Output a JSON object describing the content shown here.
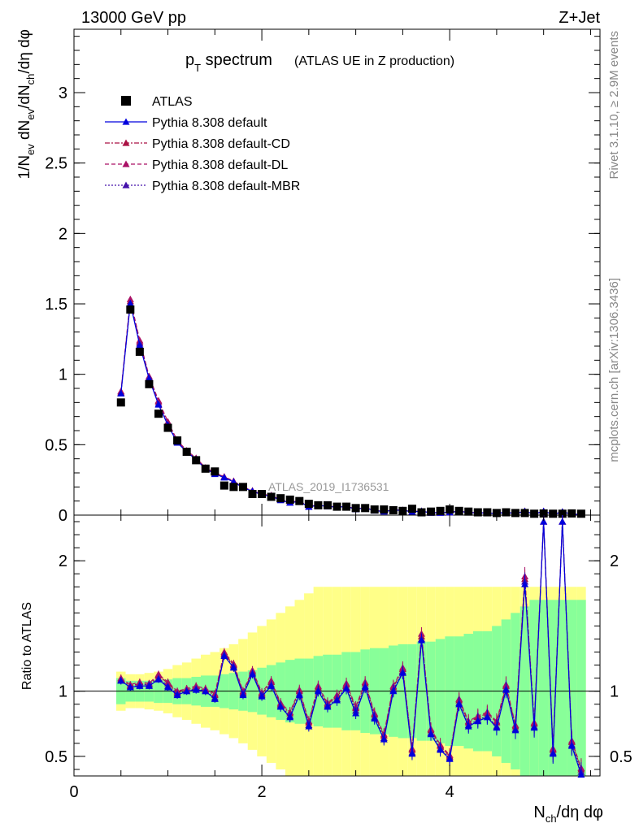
{
  "header": {
    "left": "13000 GeV pp",
    "right": "Z+Jet"
  },
  "title": {
    "main": "p",
    "main_sub": "T",
    "main_rest": " spectrum",
    "detail": "(ATLAS UE in Z production)"
  },
  "side_text": {
    "top": "Rivet 3.1.10, ≥ 2.9M events",
    "bottom": "mcplots.cern.ch [arXiv:1306.3436]"
  },
  "watermark": "ATLAS_2019_I1736531",
  "upper_ylabel": "1/N_ev dN_ev/dN_ch/dη dφ",
  "lower_ylabel": "Ratio to ATLAS",
  "xlabel": "N_ch/dη dφ",
  "legend": [
    {
      "label": "ATLAS",
      "color": "#000000",
      "style": "marker"
    },
    {
      "label": "Pythia 8.308 default",
      "color": "#0000dd",
      "style": "solid"
    },
    {
      "label": "Pythia 8.308 default-CD",
      "color": "#aa1144",
      "style": "dashdot"
    },
    {
      "label": "Pythia 8.308 default-DL",
      "color": "#aa1166",
      "style": "dashed"
    },
    {
      "label": "Pythia 8.308 default-MBR",
      "color": "#4411aa",
      "style": "dotted"
    }
  ],
  "chart_data": {
    "type": "scatter",
    "x": [
      0.5,
      0.6,
      0.7,
      0.8,
      0.9,
      1.0,
      1.1,
      1.2,
      1.3,
      1.4,
      1.5,
      1.6,
      1.7,
      1.8,
      1.9,
      2.0,
      2.1,
      2.2,
      2.3,
      2.4,
      2.5,
      2.6,
      2.7,
      2.8,
      2.9,
      3.0,
      3.1,
      3.2,
      3.3,
      3.4,
      3.5,
      3.6,
      3.7,
      3.8,
      3.9,
      4.0,
      4.1,
      4.2,
      4.3,
      4.4,
      4.5,
      4.6,
      4.7,
      4.8,
      4.9,
      5.0,
      5.1,
      5.2,
      5.3,
      5.4
    ],
    "atlas": [
      0.8,
      1.46,
      1.16,
      0.93,
      0.72,
      0.62,
      0.53,
      0.45,
      0.39,
      0.33,
      0.31,
      0.21,
      0.2,
      0.2,
      0.15,
      0.15,
      0.13,
      0.12,
      0.11,
      0.1,
      0.08,
      0.07,
      0.07,
      0.06,
      0.06,
      0.05,
      0.05,
      0.04,
      0.04,
      0.035,
      0.03,
      0.045,
      0.02,
      0.025,
      0.03,
      0.04,
      0.03,
      0.025,
      0.02,
      0.02,
      0.015,
      0.02,
      0.015,
      0.015,
      0.01,
      0.012,
      0.01,
      0.01,
      0.012,
      0.01
    ],
    "ratio_default": [
      1.08,
      1.03,
      1.04,
      1.04,
      1.09,
      1.03,
      0.97,
      1.0,
      1.01,
      1.0,
      0.94,
      1.27,
      1.18,
      0.97,
      1.13,
      0.96,
      1.04,
      0.88,
      0.8,
      0.97,
      0.73,
      1.0,
      0.88,
      0.93,
      1.02,
      0.83,
      1.03,
      0.79,
      0.63,
      1.0,
      1.14,
      0.52,
      1.39,
      0.67,
      0.55,
      0.48,
      0.9,
      0.73,
      0.77,
      0.8,
      0.72,
      1.01,
      0.7,
      1.82,
      0.72,
      2.3,
      0.52,
      2.3,
      0.58,
      0.36
    ],
    "ratio_cd": [
      1.09,
      1.04,
      1.06,
      1.05,
      1.12,
      1.06,
      0.99,
      1.01,
      1.03,
      1.01,
      0.97,
      1.29,
      1.2,
      0.99,
      1.15,
      0.98,
      1.07,
      0.9,
      0.83,
      1.0,
      0.76,
      1.03,
      0.9,
      0.96,
      1.05,
      0.87,
      1.06,
      0.82,
      0.66,
      1.03,
      1.17,
      0.55,
      1.42,
      0.7,
      0.58,
      0.5,
      0.93,
      0.76,
      0.8,
      0.83,
      0.76,
      1.04,
      0.73,
      1.86,
      0.75,
      2.3,
      0.55,
      2.3,
      0.61,
      0.4
    ],
    "ratio_dl": [
      1.1,
      1.05,
      1.07,
      1.06,
      1.13,
      1.07,
      1.0,
      1.02,
      1.04,
      1.02,
      0.98,
      1.3,
      1.21,
      1.0,
      1.16,
      0.99,
      1.08,
      0.91,
      0.84,
      1.01,
      0.77,
      1.04,
      0.91,
      0.97,
      1.06,
      0.88,
      1.07,
      0.83,
      0.67,
      1.04,
      1.18,
      0.56,
      1.44,
      0.71,
      0.59,
      0.51,
      0.94,
      0.77,
      0.81,
      0.84,
      0.77,
      1.05,
      0.74,
      1.88,
      0.76,
      2.3,
      0.56,
      2.3,
      0.62,
      0.41
    ],
    "ratio_mbr": [
      1.08,
      1.03,
      1.05,
      1.05,
      1.1,
      1.04,
      0.98,
      1.0,
      1.02,
      1.0,
      0.95,
      1.28,
      1.19,
      0.98,
      1.14,
      0.97,
      1.05,
      0.89,
      0.81,
      0.98,
      0.74,
      1.01,
      0.89,
      0.94,
      1.03,
      0.85,
      1.04,
      0.8,
      0.64,
      1.01,
      1.15,
      0.53,
      1.4,
      0.68,
      0.56,
      0.49,
      0.91,
      0.74,
      0.78,
      0.81,
      0.73,
      1.02,
      0.71,
      1.84,
      0.73,
      2.3,
      0.53,
      2.3,
      0.59,
      0.38
    ],
    "band_green": [
      0.1,
      0.08,
      0.08,
      0.08,
      0.09,
      0.09,
      0.1,
      0.1,
      0.11,
      0.12,
      0.12,
      0.13,
      0.14,
      0.15,
      0.16,
      0.18,
      0.2,
      0.22,
      0.24,
      0.25,
      0.25,
      0.27,
      0.28,
      0.28,
      0.3,
      0.3,
      0.32,
      0.33,
      0.33,
      0.35,
      0.36,
      0.36,
      0.38,
      0.38,
      0.4,
      0.42,
      0.42,
      0.44,
      0.46,
      0.46,
      0.5,
      0.55,
      0.6,
      0.65,
      0.7,
      0.7,
      0.7,
      0.7,
      0.7,
      0.7
    ],
    "band_yellow": [
      0.15,
      0.13,
      0.13,
      0.14,
      0.15,
      0.17,
      0.2,
      0.22,
      0.25,
      0.28,
      0.3,
      0.33,
      0.36,
      0.4,
      0.45,
      0.5,
      0.55,
      0.6,
      0.65,
      0.7,
      0.75,
      0.8,
      0.8,
      0.8,
      0.8,
      0.8,
      0.8,
      0.8,
      0.8,
      0.8,
      0.8,
      0.8,
      0.8,
      0.8,
      0.8,
      0.8,
      0.8,
      0.8,
      0.8,
      0.8,
      0.8,
      0.8,
      0.8,
      0.8,
      0.8,
      0.8,
      0.8,
      0.8,
      0.8,
      0.8
    ],
    "upper_xlim": [
      0,
      5.6
    ],
    "upper_ylim": [
      0,
      3.45
    ],
    "upper_yticks": [
      0,
      0.5,
      1,
      1.5,
      2,
      2.5,
      3
    ],
    "upper_ytick_labels": [
      "0",
      "0.5",
      "1",
      "1.5",
      "2",
      "2.5",
      "3"
    ],
    "lower_ylim": [
      0.35,
      2.35
    ],
    "lower_yticks": [
      0.5,
      1,
      2
    ],
    "lower_ytick_labels": [
      "0.5",
      "1",
      "2"
    ],
    "xticks": [
      0,
      2,
      4
    ],
    "xtick_labels": [
      "0",
      "2",
      "4"
    ],
    "grid": false,
    "legend_position": "top-left"
  }
}
